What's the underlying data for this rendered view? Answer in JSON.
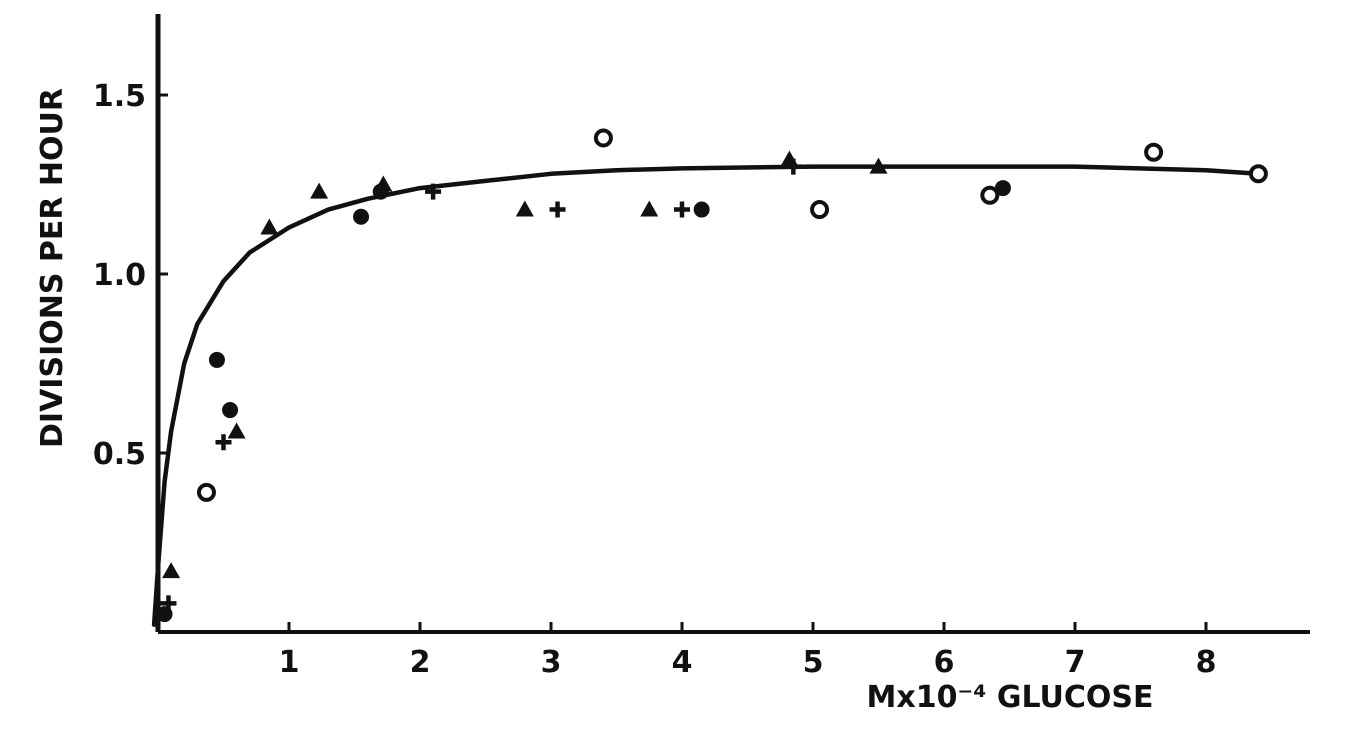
{
  "chart_data": {
    "type": "scatter",
    "title": "",
    "xlabel": "Mx10⁻⁴ GLUCOSE",
    "ylabel": "DIVISIONS PER HOUR",
    "xlim": [
      -1.0,
      8.8
    ],
    "ylim": [
      0.0,
      1.75
    ],
    "xticks": [
      {
        "value": 1,
        "label": "1"
      },
      {
        "value": 2,
        "label": "2"
      },
      {
        "value": 3,
        "label": "3"
      },
      {
        "value": 4,
        "label": "4"
      },
      {
        "value": 5,
        "label": "5"
      },
      {
        "value": 6,
        "label": "6"
      },
      {
        "value": 7,
        "label": "7"
      },
      {
        "value": 8,
        "label": "8"
      }
    ],
    "yticks": [
      {
        "value": 0.5,
        "label": "0.5"
      },
      {
        "value": 1.0,
        "label": "1.0"
      },
      {
        "value": 1.5,
        "label": "1.5"
      }
    ],
    "grid": false,
    "curve": {
      "x": [
        -0.03,
        0.0,
        0.05,
        0.1,
        0.2,
        0.3,
        0.5,
        0.7,
        1.0,
        1.3,
        1.6,
        2.0,
        2.5,
        3.0,
        3.5,
        4.0,
        5.0,
        6.0,
        7.0,
        8.0,
        8.4
      ],
      "y": [
        0.02,
        0.18,
        0.42,
        0.56,
        0.75,
        0.86,
        0.98,
        1.06,
        1.13,
        1.18,
        1.21,
        1.24,
        1.26,
        1.28,
        1.29,
        1.295,
        1.3,
        1.3,
        1.3,
        1.29,
        1.28
      ]
    },
    "series": [
      {
        "marker": "triangle",
        "points": [
          [
            0.1,
            0.17
          ],
          [
            0.6,
            0.56
          ],
          [
            0.85,
            1.13
          ],
          [
            1.23,
            1.23
          ],
          [
            1.72,
            1.25
          ],
          [
            2.8,
            1.18
          ],
          [
            3.75,
            1.18
          ],
          [
            4.82,
            1.32
          ],
          [
            5.5,
            1.3
          ]
        ]
      },
      {
        "marker": "open-circle",
        "points": [
          [
            0.37,
            0.39
          ],
          [
            3.4,
            1.38
          ],
          [
            5.05,
            1.18
          ],
          [
            6.35,
            1.22
          ],
          [
            7.6,
            1.34
          ],
          [
            8.4,
            1.28
          ]
        ]
      },
      {
        "marker": "filled-circle",
        "points": [
          [
            0.05,
            0.05
          ],
          [
            0.45,
            0.76
          ],
          [
            0.55,
            0.62
          ],
          [
            1.55,
            1.16
          ],
          [
            1.7,
            1.23
          ],
          [
            4.15,
            1.18
          ],
          [
            6.45,
            1.24
          ]
        ]
      },
      {
        "marker": "plus",
        "points": [
          [
            0.08,
            0.08
          ],
          [
            0.5,
            0.53
          ],
          [
            3.05,
            1.18
          ],
          [
            4.0,
            1.18
          ],
          [
            2.1,
            1.23
          ],
          [
            4.85,
            1.3
          ]
        ]
      }
    ]
  }
}
